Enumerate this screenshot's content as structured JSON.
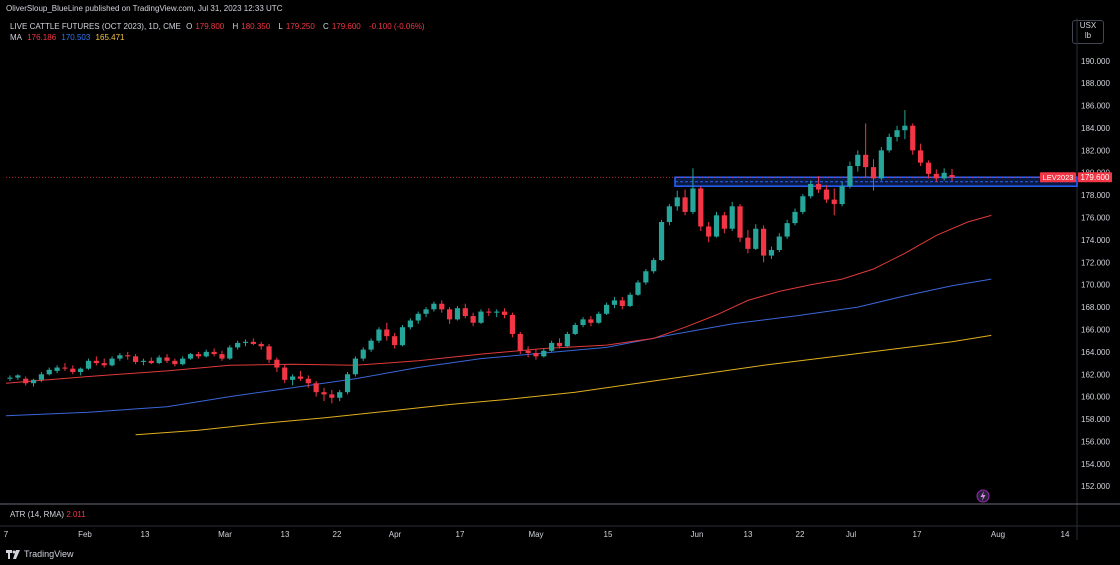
{
  "publisher": {
    "text": "OliverSloup_BlueLine published on TradingView.com, Jul 31, 2023 12:33 UTC"
  },
  "symbol": {
    "title": "LIVE CATTLE FUTURES (OCT 2023), 1D, CME",
    "o_label": "O",
    "o": "179.800",
    "h_label": "H",
    "h": "180.350",
    "l_label": "L",
    "l": "179.250",
    "c_label": "C",
    "c": "179.600",
    "change": "-0.100 (-0.06%)"
  },
  "ma": {
    "label": "MA",
    "v1": "176.186",
    "v2": "170.503",
    "v3": "165.471"
  },
  "currency": {
    "line1": "USX",
    "line2": "lb"
  },
  "atr": {
    "label": "ATR (14, RMA)",
    "value": "2.011"
  },
  "branding": {
    "text": "TradingView"
  },
  "price_tags": {
    "series": "LEV2023",
    "last": "179.600"
  },
  "colors": {
    "up": "#26a69a",
    "down": "#f23645",
    "ma1": "#e03a3a",
    "ma2": "#3a66d8",
    "ma3": "#e0b020",
    "zone": "#2962ff"
  },
  "chart_data": {
    "type": "candlestick",
    "y_axis": {
      "ticks": [
        152,
        154,
        156,
        158,
        160,
        162,
        164,
        166,
        168,
        170,
        172,
        174,
        176,
        178,
        180,
        182,
        184,
        186,
        188,
        190
      ],
      "range": [
        150.5,
        191.5
      ]
    },
    "x_axis": {
      "labels": [
        "7",
        "Feb",
        "13",
        "Mar",
        "13",
        "22",
        "Apr",
        "17",
        "May",
        "15",
        "Jun",
        "13",
        "22",
        "Jul",
        "17",
        "Aug",
        "14"
      ]
    },
    "resistance_zone": {
      "low": 178.8,
      "high": 179.6
    },
    "candles": [
      [
        161.6,
        161.9,
        161.4,
        161.7
      ],
      [
        161.7,
        162.0,
        161.5,
        161.9
      ],
      [
        161.6,
        161.8,
        161.0,
        161.2
      ],
      [
        161.2,
        161.6,
        160.9,
        161.5
      ],
      [
        161.5,
        162.2,
        161.3,
        162.0
      ],
      [
        162.0,
        162.6,
        161.9,
        162.4
      ],
      [
        162.3,
        162.8,
        162.1,
        162.6
      ],
      [
        162.6,
        163.0,
        162.3,
        162.5
      ],
      [
        162.5,
        162.8,
        162.0,
        162.2
      ],
      [
        162.2,
        162.6,
        161.9,
        162.5
      ],
      [
        162.5,
        163.4,
        162.4,
        163.2
      ],
      [
        163.2,
        163.6,
        162.8,
        163.0
      ],
      [
        163.0,
        163.4,
        162.6,
        162.8
      ],
      [
        162.8,
        163.6,
        162.7,
        163.4
      ],
      [
        163.4,
        163.9,
        163.2,
        163.7
      ],
      [
        163.7,
        164.0,
        163.3,
        163.6
      ],
      [
        163.6,
        163.8,
        162.9,
        163.1
      ],
      [
        163.1,
        163.4,
        162.8,
        163.2
      ],
      [
        163.2,
        163.5,
        162.9,
        163.0
      ],
      [
        163.0,
        163.7,
        162.9,
        163.5
      ],
      [
        163.5,
        163.8,
        163.0,
        163.2
      ],
      [
        163.2,
        163.4,
        162.7,
        162.9
      ],
      [
        162.9,
        163.6,
        162.8,
        163.4
      ],
      [
        163.4,
        163.9,
        163.3,
        163.8
      ],
      [
        163.8,
        164.0,
        163.4,
        163.6
      ],
      [
        163.6,
        164.2,
        163.5,
        164.0
      ],
      [
        164.0,
        164.3,
        163.6,
        163.8
      ],
      [
        163.8,
        164.1,
        163.2,
        163.4
      ],
      [
        163.4,
        164.6,
        163.3,
        164.4
      ],
      [
        164.4,
        165.0,
        164.2,
        164.8
      ],
      [
        164.8,
        165.1,
        164.5,
        164.9
      ],
      [
        164.9,
        165.2,
        164.6,
        164.7
      ],
      [
        164.7,
        164.9,
        164.2,
        164.5
      ],
      [
        164.5,
        164.7,
        163.0,
        163.3
      ],
      [
        163.3,
        163.5,
        162.2,
        162.6
      ],
      [
        162.6,
        162.9,
        161.2,
        161.5
      ],
      [
        161.5,
        162.0,
        161.0,
        161.8
      ],
      [
        161.8,
        162.3,
        161.4,
        161.6
      ],
      [
        161.6,
        161.9,
        160.8,
        161.2
      ],
      [
        161.2,
        161.4,
        160.0,
        160.4
      ],
      [
        160.4,
        160.8,
        159.6,
        160.2
      ],
      [
        160.2,
        160.6,
        159.4,
        159.9
      ],
      [
        159.9,
        160.6,
        159.6,
        160.4
      ],
      [
        160.4,
        162.2,
        160.2,
        162.0
      ],
      [
        162.0,
        163.6,
        161.8,
        163.4
      ],
      [
        163.4,
        164.4,
        163.2,
        164.2
      ],
      [
        164.2,
        165.2,
        164.0,
        165.0
      ],
      [
        165.0,
        166.2,
        164.8,
        166.0
      ],
      [
        166.0,
        166.6,
        165.0,
        165.4
      ],
      [
        165.4,
        165.7,
        164.3,
        164.6
      ],
      [
        164.6,
        166.4,
        164.5,
        166.2
      ],
      [
        166.2,
        167.0,
        166.0,
        166.8
      ],
      [
        166.8,
        167.6,
        166.5,
        167.4
      ],
      [
        167.4,
        168.0,
        167.1,
        167.8
      ],
      [
        167.8,
        168.5,
        167.6,
        168.3
      ],
      [
        168.3,
        168.6,
        167.5,
        167.8
      ],
      [
        167.8,
        168.0,
        166.5,
        166.9
      ],
      [
        166.9,
        168.1,
        166.8,
        167.9
      ],
      [
        167.9,
        168.3,
        167.0,
        167.2
      ],
      [
        167.2,
        167.5,
        166.3,
        166.6
      ],
      [
        166.6,
        167.8,
        166.5,
        167.6
      ],
      [
        167.6,
        167.9,
        167.2,
        167.5
      ],
      [
        167.5,
        167.8,
        167.1,
        167.6
      ],
      [
        167.6,
        167.9,
        167.0,
        167.3
      ],
      [
        167.3,
        167.5,
        165.3,
        165.6
      ],
      [
        165.6,
        165.8,
        163.8,
        164.1
      ],
      [
        164.1,
        164.5,
        163.5,
        163.9
      ],
      [
        163.9,
        164.2,
        163.3,
        163.6
      ],
      [
        163.6,
        164.3,
        163.5,
        164.1
      ],
      [
        164.1,
        165.0,
        164.0,
        164.8
      ],
      [
        164.8,
        165.2,
        164.3,
        164.5
      ],
      [
        164.5,
        165.8,
        164.4,
        165.6
      ],
      [
        165.6,
        166.6,
        165.5,
        166.4
      ],
      [
        166.4,
        167.1,
        166.2,
        166.9
      ],
      [
        166.9,
        167.2,
        166.3,
        166.6
      ],
      [
        166.6,
        167.6,
        166.5,
        167.4
      ],
      [
        167.4,
        168.4,
        167.3,
        168.2
      ],
      [
        168.2,
        168.9,
        167.9,
        168.6
      ],
      [
        168.6,
        168.9,
        167.8,
        168.1
      ],
      [
        168.1,
        169.3,
        168.0,
        169.1
      ],
      [
        169.1,
        170.4,
        169.0,
        170.2
      ],
      [
        170.2,
        171.4,
        170.0,
        171.2
      ],
      [
        171.2,
        172.4,
        171.0,
        172.2
      ],
      [
        172.2,
        175.8,
        172.1,
        175.6
      ],
      [
        175.6,
        177.2,
        175.3,
        177.0
      ],
      [
        177.0,
        178.4,
        176.6,
        177.8
      ],
      [
        177.8,
        178.5,
        176.2,
        176.5
      ],
      [
        176.5,
        180.4,
        176.3,
        178.6
      ],
      [
        178.6,
        178.8,
        174.8,
        175.2
      ],
      [
        175.2,
        175.6,
        173.8,
        174.3
      ],
      [
        174.3,
        176.5,
        174.2,
        176.2
      ],
      [
        176.2,
        176.5,
        174.6,
        175.0
      ],
      [
        175.0,
        177.4,
        174.8,
        177.0
      ],
      [
        177.0,
        177.2,
        173.8,
        174.2
      ],
      [
        174.2,
        174.9,
        172.8,
        173.2
      ],
      [
        173.2,
        175.4,
        173.1,
        175.0
      ],
      [
        175.0,
        175.3,
        172.0,
        172.6
      ],
      [
        172.6,
        173.4,
        172.3,
        173.1
      ],
      [
        173.1,
        174.6,
        172.9,
        174.3
      ],
      [
        174.3,
        175.8,
        174.1,
        175.5
      ],
      [
        175.5,
        176.8,
        175.3,
        176.5
      ],
      [
        176.5,
        178.1,
        176.3,
        177.9
      ],
      [
        177.9,
        179.3,
        177.7,
        179.0
      ],
      [
        179.0,
        179.7,
        178.2,
        178.5
      ],
      [
        178.5,
        178.9,
        177.3,
        177.6
      ],
      [
        177.6,
        178.6,
        176.2,
        177.2
      ],
      [
        177.2,
        179.2,
        177.0,
        178.8
      ],
      [
        178.8,
        181.0,
        178.6,
        180.6
      ],
      [
        180.6,
        182.0,
        180.1,
        181.6
      ],
      [
        181.6,
        184.4,
        179.6,
        180.5
      ],
      [
        180.5,
        181.2,
        178.4,
        179.5
      ],
      [
        179.5,
        182.3,
        179.3,
        182.0
      ],
      [
        182.0,
        183.5,
        181.8,
        183.2
      ],
      [
        183.2,
        184.2,
        182.8,
        183.8
      ],
      [
        183.8,
        185.6,
        183.0,
        184.2
      ],
      [
        184.2,
        184.4,
        181.6,
        182.0
      ],
      [
        182.0,
        182.6,
        180.6,
        180.9
      ],
      [
        180.9,
        181.1,
        179.5,
        179.9
      ],
      [
        179.9,
        180.3,
        179.2,
        179.5
      ],
      [
        179.5,
        180.4,
        179.3,
        180.0
      ],
      [
        179.8,
        180.35,
        179.25,
        179.6
      ]
    ],
    "ma1_values": [
      [
        0,
        161.2
      ],
      [
        10,
        161.8
      ],
      [
        20,
        162.3
      ],
      [
        28,
        162.8
      ],
      [
        36,
        162.9
      ],
      [
        44,
        162.8
      ],
      [
        52,
        163.2
      ],
      [
        60,
        163.8
      ],
      [
        68,
        164.3
      ],
      [
        76,
        164.6
      ],
      [
        82,
        165.2
      ],
      [
        86,
        166.2
      ],
      [
        90,
        167.3
      ],
      [
        94,
        168.6
      ],
      [
        98,
        169.4
      ],
      [
        102,
        170.0
      ],
      [
        106,
        170.5
      ],
      [
        110,
        171.4
      ],
      [
        114,
        172.8
      ],
      [
        118,
        174.4
      ],
      [
        122,
        175.6
      ],
      [
        125,
        176.186
      ]
    ],
    "ma2_values": [
      [
        0,
        158.3
      ],
      [
        10,
        158.6
      ],
      [
        20,
        159.1
      ],
      [
        28,
        160.0
      ],
      [
        36,
        160.8
      ],
      [
        44,
        161.6
      ],
      [
        52,
        162.6
      ],
      [
        60,
        163.4
      ],
      [
        68,
        163.9
      ],
      [
        76,
        164.4
      ],
      [
        84,
        165.5
      ],
      [
        92,
        166.5
      ],
      [
        100,
        167.2
      ],
      [
        108,
        168.0
      ],
      [
        114,
        169.0
      ],
      [
        120,
        169.9
      ],
      [
        125,
        170.503
      ]
    ],
    "ma3_values": [
      [
        16,
        156.6
      ],
      [
        24,
        157.0
      ],
      [
        32,
        157.6
      ],
      [
        40,
        158.1
      ],
      [
        48,
        158.7
      ],
      [
        56,
        159.3
      ],
      [
        64,
        159.8
      ],
      [
        72,
        160.4
      ],
      [
        80,
        161.2
      ],
      [
        88,
        162.0
      ],
      [
        96,
        162.8
      ],
      [
        104,
        163.5
      ],
      [
        112,
        164.2
      ],
      [
        120,
        164.9
      ],
      [
        125,
        165.471
      ]
    ]
  }
}
